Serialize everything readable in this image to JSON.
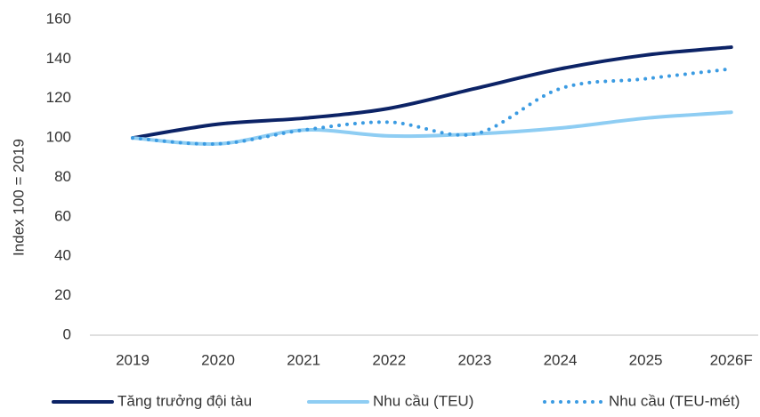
{
  "chart_data": {
    "type": "line",
    "y_label": "Index 100 = 2019",
    "categories": [
      "2019",
      "2020",
      "2021",
      "2022",
      "2023",
      "2024",
      "2025",
      "2026F"
    ],
    "series": [
      {
        "name": "Tăng trưởng đội tàu",
        "color": "#0c2366",
        "style": "solid",
        "values": [
          100,
          107,
          110,
          115,
          125,
          135,
          142,
          146
        ]
      },
      {
        "name": "Nhu cầu (TEU)",
        "color": "#8ecdf3",
        "style": "solid",
        "values": [
          100,
          97,
          104,
          101,
          102,
          105,
          110,
          113
        ]
      },
      {
        "name": "Nhu cầu (TEU-mét)",
        "color": "#3b9be2",
        "style": "dotted",
        "values": [
          100,
          97,
          104,
          108,
          102,
          125,
          130,
          135
        ]
      }
    ],
    "ylim": [
      0,
      160
    ],
    "yticks": [
      0,
      20,
      40,
      60,
      80,
      100,
      120,
      140,
      160
    ],
    "grid": false,
    "legend": "bottom"
  }
}
